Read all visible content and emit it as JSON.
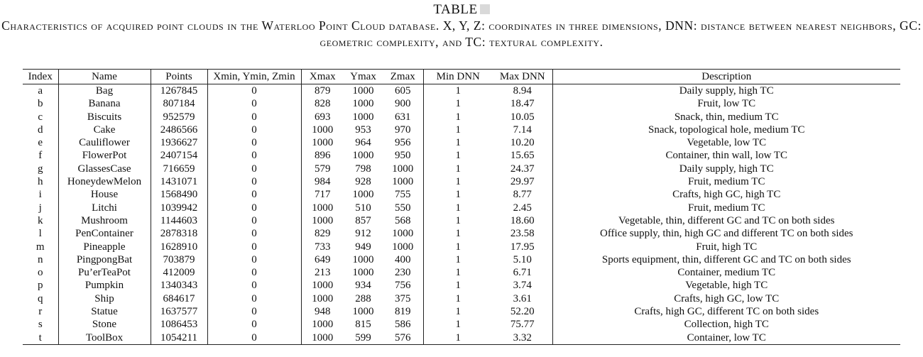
{
  "caption": {
    "label": "TABLE",
    "text": "Characteristics of acquired point clouds in the Waterloo Point Cloud database. X, Y, Z: coordinates in three dimensions, DNN: distance between nearest neighbors, GC: geometric complexity, and TC: textural complexity."
  },
  "table": {
    "headers": [
      "Index",
      "Name",
      "Points",
      "Xmin, Ymin, Zmin",
      "Xmax",
      "Ymax",
      "Zmax",
      "Min DNN",
      "Max DNN",
      "Description"
    ],
    "rows": [
      [
        "a",
        "Bag",
        "1267845",
        "0",
        "879",
        "1000",
        "605",
        "1",
        "8.94",
        "Daily supply, high TC"
      ],
      [
        "b",
        "Banana",
        "807184",
        "0",
        "828",
        "1000",
        "900",
        "1",
        "18.47",
        "Fruit, low TC"
      ],
      [
        "c",
        "Biscuits",
        "952579",
        "0",
        "693",
        "1000",
        "631",
        "1",
        "10.05",
        "Snack, thin, medium TC"
      ],
      [
        "d",
        "Cake",
        "2486566",
        "0",
        "1000",
        "953",
        "970",
        "1",
        "7.14",
        "Snack, topological hole, medium TC"
      ],
      [
        "e",
        "Cauliflower",
        "1936627",
        "0",
        "1000",
        "964",
        "956",
        "1",
        "10.20",
        "Vegetable, low TC"
      ],
      [
        "f",
        "FlowerPot",
        "2407154",
        "0",
        "896",
        "1000",
        "950",
        "1",
        "15.65",
        "Container, thin wall, low TC"
      ],
      [
        "g",
        "GlassesCase",
        "716659",
        "0",
        "579",
        "798",
        "1000",
        "1",
        "24.37",
        "Daily supply, high TC"
      ],
      [
        "h",
        "HoneydewMelon",
        "1431071",
        "0",
        "984",
        "928",
        "1000",
        "1",
        "29.97",
        "Fruit, medium TC"
      ],
      [
        "i",
        "House",
        "1568490",
        "0",
        "717",
        "1000",
        "755",
        "1",
        "8.77",
        "Crafts, high GC, high TC"
      ],
      [
        "j",
        "Litchi",
        "1039942",
        "0",
        "1000",
        "510",
        "550",
        "1",
        "2.45",
        "Fruit, medium TC"
      ],
      [
        "k",
        "Mushroom",
        "1144603",
        "0",
        "1000",
        "857",
        "568",
        "1",
        "18.60",
        "Vegetable, thin, different GC and TC on both sides"
      ],
      [
        "l",
        "PenContainer",
        "2878318",
        "0",
        "829",
        "912",
        "1000",
        "1",
        "23.58",
        "Office supply, thin, high GC and different TC on both sides"
      ],
      [
        "m",
        "Pineapple",
        "1628910",
        "0",
        "733",
        "949",
        "1000",
        "1",
        "17.95",
        "Fruit, high TC"
      ],
      [
        "n",
        "PingpongBat",
        "703879",
        "0",
        "649",
        "1000",
        "400",
        "1",
        "5.10",
        "Sports equipment, thin, different GC and TC on both sides"
      ],
      [
        "o",
        "Pu’erTeaPot",
        "412009",
        "0",
        "213",
        "1000",
        "230",
        "1",
        "6.71",
        "Container, medium TC"
      ],
      [
        "p",
        "Pumpkin",
        "1340343",
        "0",
        "1000",
        "934",
        "756",
        "1",
        "3.74",
        "Vegetable, high TC"
      ],
      [
        "q",
        "Ship",
        "684617",
        "0",
        "1000",
        "288",
        "375",
        "1",
        "3.61",
        "Crafts, high GC, low TC"
      ],
      [
        "r",
        "Statue",
        "1637577",
        "0",
        "948",
        "1000",
        "819",
        "1",
        "52.20",
        "Crafts, high GC, different TC on both sides"
      ],
      [
        "s",
        "Stone",
        "1086453",
        "0",
        "1000",
        "815",
        "586",
        "1",
        "75.77",
        "Collection, high TC"
      ],
      [
        "t",
        "ToolBox",
        "1054211",
        "0",
        "1000",
        "599",
        "576",
        "1",
        "3.32",
        "Container, low TC"
      ]
    ]
  }
}
